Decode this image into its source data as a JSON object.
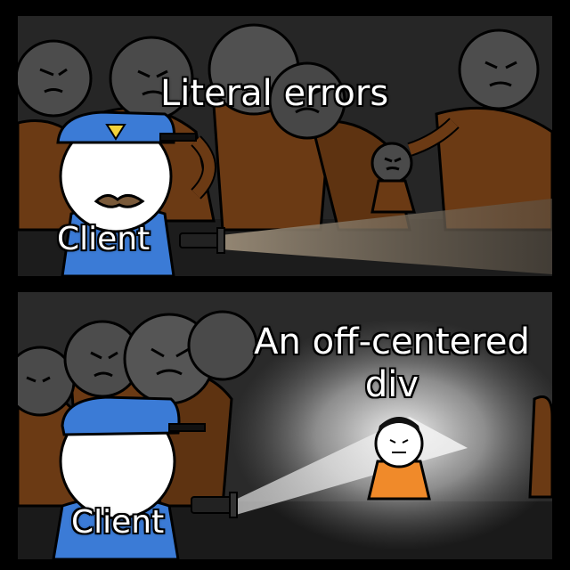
{
  "panels": [
    {
      "caption": "Literal errors",
      "label": "Client"
    },
    {
      "caption": "An off-centered div",
      "label": "Client"
    }
  ],
  "colors": {
    "background": "#000000",
    "police_uniform": "#3b7bd6",
    "prisoner_orange": "#c8651c",
    "face": "#ffffff",
    "shadow_figures": "#4a4a4a",
    "caption_text": "#ffffff"
  },
  "icons": [
    "police-badge-icon",
    "flashlight-icon"
  ]
}
